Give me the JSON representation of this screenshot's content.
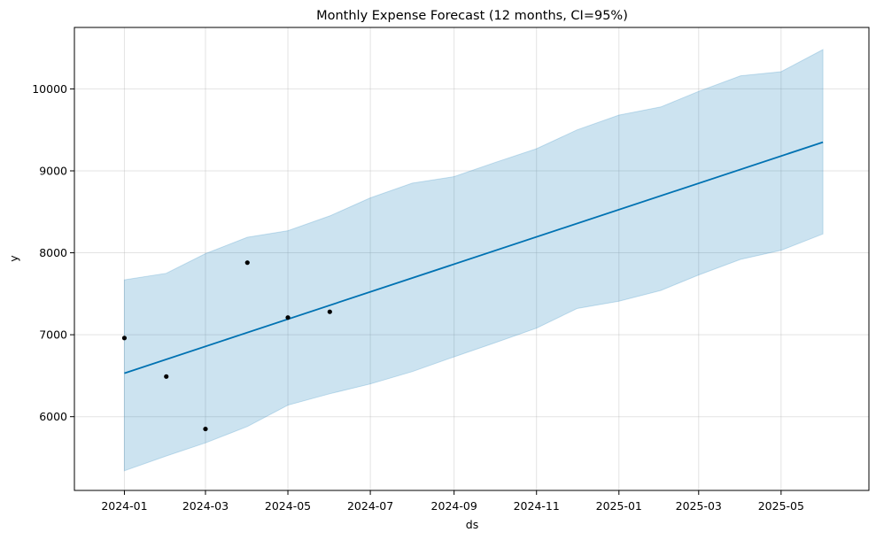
{
  "chart_data": {
    "type": "line",
    "title": "Monthly Expense Forecast (12 months, CI=95%)",
    "xlabel": "ds",
    "ylabel": "y",
    "grid": true,
    "ylim": [
      5100,
      10750
    ],
    "xlim": [
      "2023-11-25",
      "2025-07-05"
    ],
    "x_ticks": [
      "2024-01",
      "2024-03",
      "2024-05",
      "2024-07",
      "2024-09",
      "2024-11",
      "2025-01",
      "2025-03",
      "2025-05"
    ],
    "y_ticks": [
      6000,
      7000,
      8000,
      9000,
      10000
    ],
    "colors": {
      "forecast": "#0072b2",
      "interval": "#0072b2",
      "observed": "#000000"
    },
    "observed": {
      "x": [
        "2024-01-01",
        "2024-02-01",
        "2024-03-01",
        "2024-04-01",
        "2024-05-01",
        "2024-06-01"
      ],
      "y": [
        6960,
        6490,
        5850,
        7880,
        7210,
        7280
      ]
    },
    "forecast": {
      "x": [
        "2024-01-01",
        "2025-06-01"
      ],
      "y": [
        6530,
        9350
      ]
    },
    "interval": {
      "x": [
        "2024-01-01",
        "2024-02-01",
        "2024-03-01",
        "2024-04-01",
        "2024-05-01",
        "2024-06-01",
        "2024-07-01",
        "2024-08-01",
        "2024-09-01",
        "2024-10-01",
        "2024-11-01",
        "2024-12-01",
        "2025-01-01",
        "2025-02-01",
        "2025-03-01",
        "2025-04-01",
        "2025-05-01",
        "2025-06-01"
      ],
      "upper": [
        7670,
        7750,
        7990,
        8190,
        8270,
        8450,
        8670,
        8850,
        8930,
        9100,
        9270,
        9500,
        9680,
        9780,
        9970,
        10160,
        10210,
        10480
      ],
      "lower": [
        5340,
        5520,
        5680,
        5880,
        6140,
        6280,
        6400,
        6550,
        6730,
        6900,
        7080,
        7320,
        7410,
        7540,
        7730,
        7920,
        8030,
        8230
      ]
    }
  }
}
